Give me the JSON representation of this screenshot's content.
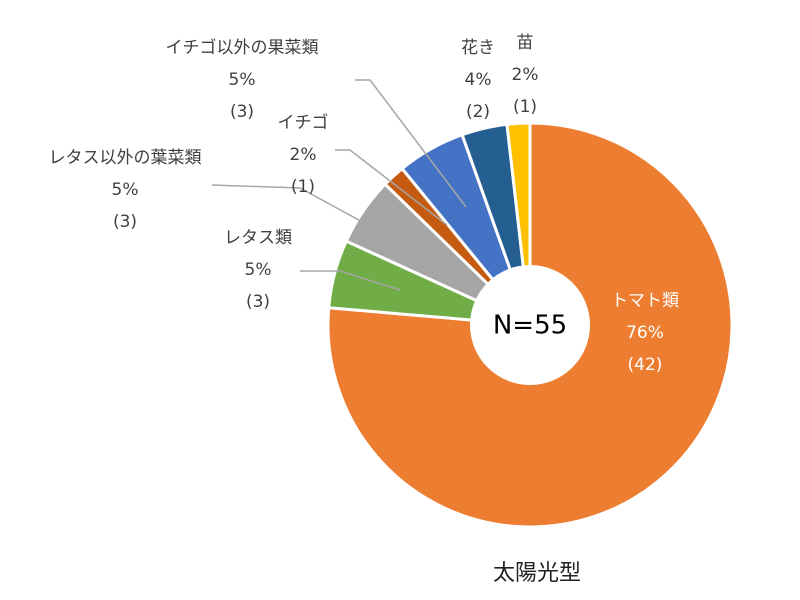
{
  "chart_data": {
    "type": "pie",
    "caption": "太陽光型",
    "center_label": "N=55",
    "slices": [
      {
        "name": "トマト類",
        "percent": "76%",
        "count": "(42)",
        "value": 42,
        "color": "#ED7D31"
      },
      {
        "name": "レタス類",
        "percent": "5%",
        "count": "(3)",
        "value": 3,
        "color": "#70AD47"
      },
      {
        "name": "レタス以外の葉菜類",
        "percent": "5%",
        "count": "(3)",
        "value": 3,
        "color": "#A5A5A5"
      },
      {
        "name": "イチゴ",
        "percent": "2%",
        "count": "(1)",
        "value": 1,
        "color": "#C55A11"
      },
      {
        "name": "イチゴ以外の果菜類",
        "percent": "5%",
        "count": "(3)",
        "value": 3,
        "color": "#4472C4"
      },
      {
        "name": "花き",
        "percent": "4%",
        "count": "(2)",
        "value": 2,
        "color": "#255E91"
      },
      {
        "name": "苗",
        "percent": "2%",
        "count": "(1)",
        "value": 1,
        "color": "#FFC000"
      }
    ]
  }
}
